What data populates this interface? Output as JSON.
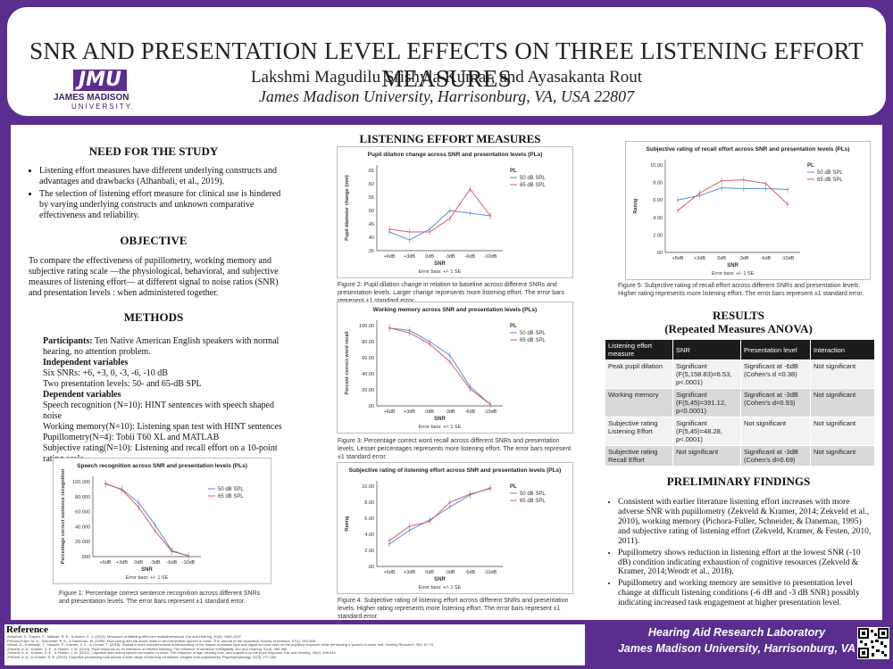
{
  "header": {
    "title": "SNR AND PRESENTATION LEVEL EFFECTS ON THREE LISTENING EFFORT MEASURES",
    "authors": "Lakshmi Magudilu Srishyla Kumar, and Ayasakanta Rout",
    "affiliation": "James Madison University, Harrisonburg, VA, USA 22807",
    "logo": {
      "mark": "JMU",
      "name": "JAMES MADISON",
      "sub": "UNIVERSITY."
    }
  },
  "need": {
    "heading": "NEED FOR THE STUDY",
    "bullets": [
      "Listening effort measures have different underlying constructs and advantages and drawbacks (Alhanbali, et al., 2019).",
      "The selection of listening effort measure for clinical use is hindered by varying underlying constructs and unknown comparative effectiveness and reliability."
    ]
  },
  "objective": {
    "heading": "OBJECTIVE",
    "text": "To compare the effectiveness of pupillometry, working memory and subjective rating scale —the physiological, behavioral, and subjective measures of listening effort— at different signal to noise ratios (SNR) and presentation levels : when administered together."
  },
  "methods": {
    "heading": "METHODS",
    "participants_label": "Participants:",
    "participants_text": " Ten Native American English speakers with normal hearing, no attention problem.",
    "indep_label": "Independent variables",
    "indep": [
      "Six SNRs: +6, +3, 0, -3, -6, -10 dB",
      "Two presentation levels: 50- and 65-dB SPL"
    ],
    "dep_label": "Dependent variables",
    "dep": [
      "Speech recognition (N=10): HINT sentences with speech shaped noise",
      "Working memory(N=10): Listening span test with HINT sentences",
      "Pupillometry(N=4): Tobii T60 XL and MATLAB",
      "Subjective rating(N=10): Listening and recall effort on a 10-point rating scale"
    ]
  },
  "measures": {
    "heading": "LISTENING EFFORT MEASURES"
  },
  "results": {
    "heading": "RESULTS",
    "subheading": "(Repeated Measures ANOVA)",
    "columns": [
      "Listening effort measure",
      "SNR",
      "Presentation level",
      "Interaction"
    ],
    "rows": [
      [
        "Peak pupil dilation",
        "Significant (F(5,158.83)=6.53, p<.0001)",
        "Significant at -6dB (Cohen's d =0.38)",
        "Not significant"
      ],
      [
        "Working memory",
        "Significant (F(5,45)=391.12, p<0.0001)",
        "Significant at -3dB (Cohen's d=0.93)",
        "Not significant"
      ],
      [
        "Subjective rating Listening Effort",
        "Significant (F(5,45)=48.28, p<.0001)",
        "Not significant",
        "Not significant"
      ],
      [
        "Subjective rating Recall Effort",
        "Not significant",
        "Significant at -3dB (Cohen's d=0.69)",
        "Not significant"
      ]
    ]
  },
  "findings": {
    "heading": "PRELIMINARY FINDINGS",
    "bullets": [
      "Consistent with earlier literature listening effort increases with more adverse SNR with pupillometry (Zekveld & Kramer, 2014; Zekveld et al., 2010), working memory (Pichora-Fuller, Schneider, & Daneman, 1995) and subjective rating of listening effort (Zekveld, Kramer, & Festen, 2010, 2011).",
      "Pupillometry shows reduction in listening effort at the lowest SNR (-10 dB) condition indicating exhaustion of cognitive resources (Zekveld & Kramer, 2014;Wendt et al., 2018).",
      "Pupillometry and working memory are sensitive to presentation level change at difficult listening conditions (-6 dB and -3 dB SNR) possibly indicating increased task engagement at higher presentation level."
    ]
  },
  "captions": {
    "fig1": "Figure 1: Percentage correct sentence recognition across different SNRs and presentation levels. The error bars represent ±1 standard error.",
    "fig2": "Figure 2: Pupil dilation change in relation to baseline across different SNRs and presentation levels. Larger change represents more listening effort. The error bars represent ±1 standard error.",
    "fig3": "Figure 3: Percentage correct word recall across different SNRs and presentation levels. Lesser percentages represents more listening effort. The error bars represent ±1 standard error.",
    "fig4": "Figure 4: Subjective rating of listening effort across different SNRs and presentation levels. Higher rating represents more listening effort. The error bars represent ±1 standard error.",
    "fig5": "Figure 5: Subjective rating of recall effort across different SNRs and presentation levels. Higher rating represents more listening effort. The error bars represent ±1 standard error."
  },
  "reference": {
    "heading": "Reference",
    "lines": [
      "Alhanbali, S., Dawes, P., Millman, R. E., & Munro, K. J. (2019). Measures of listening effort are multidimensional. Ear and Hearing, 40(5), 1084-1097.",
      "Pichora-Fuller, M. K., Schneider, B. A., & Daneman, M. (1995). How young and old adults listen to and remember speech in noise. The Journal of the Acoustical Society of America, 97(1), 593-608.",
      "Wendt, D., Koelewijn, T., Ksiązek, P., Kramer, S. E., & Lunner, T. (2018). Toward a more comprehensive understanding of the impact of masker type and signal-to-noise ratio on the pupillary response while performing a speech-in-noise test. Hearing Research, 369, 67-78.",
      "Zekveld, A. A., Kramer, S. E., & Festen, J. M. (2010). Pupil response as an indication of effortful listening: The influence of sentence intelligibility. Ear and Hearing, 31(4), 480-490.",
      "Zekveld, A. A., Kramer, S. E., & Festen, J. M. (2011). Cognitive load during speech perception in noise: The influence of age, hearing loss, and cognition on the pupil response. Ear and Hearing, 32(4), 498-510.",
      "Zekveld, A. A., & Kramer, S. E. (2014). Cognitive processing load across a wide range of listening conditions: Insights from pupillometry. Psychophysiology, 51(3), 277-284."
    ]
  },
  "footer": {
    "lab": "Hearing Aid Research Laboratory",
    "univ": "James Madison University, Harrisonburg, VA"
  },
  "chart_data": [
    {
      "type": "line",
      "title": "Speech recognition across SNR and presentation levels (PLs)",
      "xlabel": "SNR",
      "ylabel": "Percentage correct sentence recognition",
      "categories": [
        "+6dB",
        "+3dB",
        "0dB",
        "-3dB",
        "-6dB",
        "-10dB"
      ],
      "yticks": [
        "100.000",
        "80.000",
        "60.000",
        "40.000",
        "20.000",
        ".000"
      ],
      "ylim": [
        0,
        100
      ],
      "legend_title": "",
      "note": "Error bars: +/- 1 SE",
      "series": [
        {
          "name": "50 dB SPL",
          "color": "#5b8fd6",
          "values": [
            97,
            90,
            72,
            42,
            8,
            1
          ]
        },
        {
          "name": "65 dB SPL",
          "color": "#d75b6a",
          "values": [
            98,
            89,
            66,
            34,
            7,
            1
          ]
        }
      ]
    },
    {
      "type": "line",
      "title": "Pupil dilation change across SNR and presentation levels (PLs)",
      "xlabel": "SNR",
      "ylabel": "Pupil diameter change (mm)",
      "categories": [
        "+6dB",
        "+3dB",
        "0dB",
        "-3dB",
        "-6dB",
        "-10dB"
      ],
      "yticks": [
        ".65",
        ".60",
        ".55",
        ".50",
        ".45",
        ".40",
        ".35"
      ],
      "ylim": [
        0.35,
        0.65
      ],
      "legend_title": "PL",
      "note": "Error bars: +/- 1 SE",
      "series": [
        {
          "name": "50 dB SPL",
          "color": "#5b8fd6",
          "values": [
            0.42,
            0.39,
            0.43,
            0.5,
            0.49,
            0.48
          ]
        },
        {
          "name": "65 dB SPL",
          "color": "#d75b6a",
          "values": [
            0.43,
            0.42,
            0.42,
            0.47,
            0.58,
            0.48
          ]
        }
      ]
    },
    {
      "type": "line",
      "title": "Working memory across SNR and presentation levels (PLs)",
      "xlabel": "SNR",
      "ylabel": "Percent correct word recall",
      "categories": [
        "+6dB",
        "+3dB",
        "0dB",
        "-3dB",
        "-6dB",
        "-10dB"
      ],
      "yticks": [
        "100.00",
        "80.00",
        "60.00",
        "40.00",
        "20.00",
        ".00"
      ],
      "ylim": [
        0,
        100
      ],
      "legend_title": "PL",
      "note": "Error bars: +/- 1 SE",
      "series": [
        {
          "name": "50 dB SPL",
          "color": "#5b8fd6",
          "values": [
            97,
            94,
            80,
            63,
            24,
            2
          ]
        },
        {
          "name": "65 dB SPL",
          "color": "#d75b6a",
          "values": [
            97,
            91,
            77,
            55,
            21,
            2
          ]
        }
      ]
    },
    {
      "type": "line",
      "title": "Subjective rating of listening effort across SNR and presentation levels (PLs)",
      "xlabel": "SNR",
      "ylabel": "Rating",
      "categories": [
        "+6dB",
        "+3dB",
        "0dB",
        "-3dB",
        "-6dB",
        "-10dB"
      ],
      "yticks": [
        "10.00",
        "8.00",
        "6.00",
        "4.00",
        "2.00",
        ".00"
      ],
      "ylim": [
        0,
        10
      ],
      "legend_title": "PL",
      "note": "Error bars: +/- 1 SE",
      "series": [
        {
          "name": "50 dB SPL",
          "color": "#5b8fd6",
          "values": [
            2.8,
            4.5,
            5.8,
            7.4,
            8.9,
            9.8
          ]
        },
        {
          "name": "65 dB SPL",
          "color": "#d75b6a",
          "values": [
            3.2,
            5.0,
            5.6,
            8.0,
            9.0,
            9.7
          ]
        }
      ]
    },
    {
      "type": "line",
      "title": "Subjective rating of recall effort across SNR and presentation levels (PLs)",
      "xlabel": "SNR",
      "ylabel": "Rating",
      "categories": [
        "+6dB",
        "+3dB",
        "0dB",
        "-3dB",
        "-6dB",
        "-10dB"
      ],
      "yticks": [
        "10.00",
        "8.00",
        "6.00",
        "4.00",
        "2.00",
        ".00"
      ],
      "ylim": [
        0,
        10
      ],
      "legend_title": "PL",
      "note": "Error bars: +/- 1 SE",
      "series": [
        {
          "name": "50 dB SPL",
          "color": "#5b8fd6",
          "values": [
            6.0,
            6.5,
            7.4,
            7.3,
            7.3,
            7.2
          ]
        },
        {
          "name": "65 dB SPL",
          "color": "#d75b6a",
          "values": [
            4.8,
            6.8,
            8.2,
            8.3,
            7.9,
            5.5
          ]
        }
      ]
    }
  ]
}
